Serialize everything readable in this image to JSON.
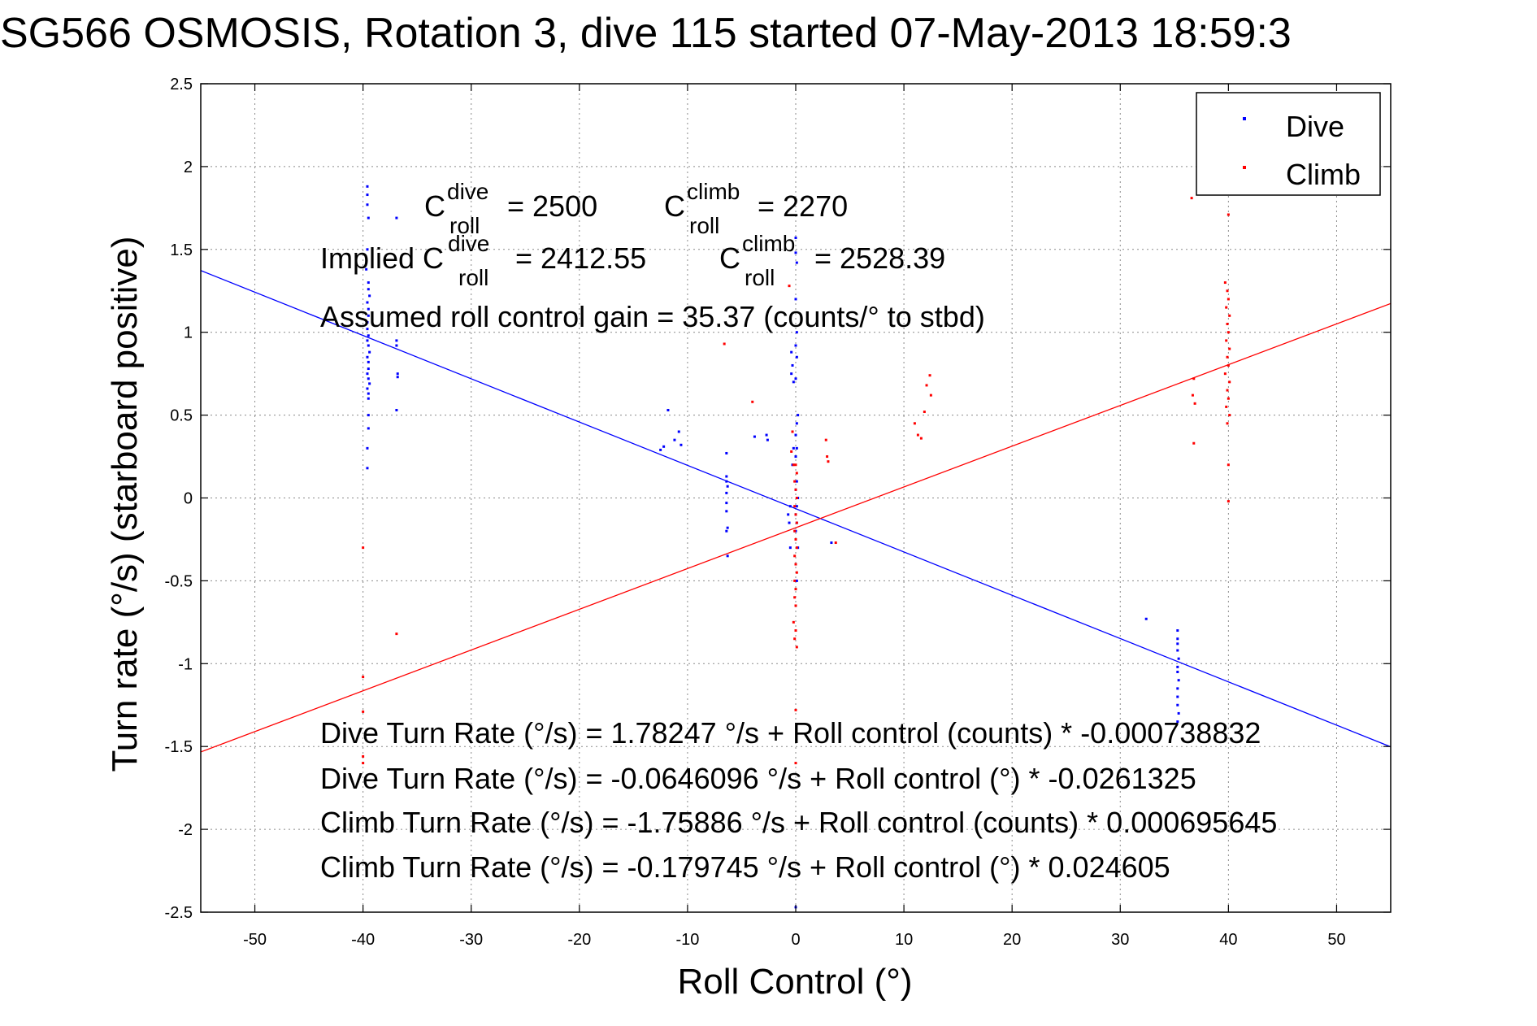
{
  "chart_data": {
    "type": "scatter",
    "title": "SG566 OSMOSIS, Rotation 3, dive 115 started 07-May-2013 18:59:3",
    "xlabel": "Roll Control (°)",
    "ylabel": "Turn rate (°/s)  (starboard positive)",
    "xlim": [
      -55,
      55
    ],
    "ylim": [
      -2.5,
      2.5
    ],
    "xticks": [
      -50,
      -40,
      -30,
      -20,
      -10,
      0,
      10,
      20,
      30,
      40,
      50
    ],
    "yticks": [
      -2.5,
      -2,
      -1.5,
      -1,
      -0.5,
      0,
      0.5,
      1,
      1.5,
      2,
      2.5
    ],
    "grid": true,
    "legend": {
      "position": "top-right",
      "entries": [
        "Dive",
        "Climb"
      ]
    },
    "colors": {
      "dive": "#0000ff",
      "climb": "#ff0000"
    },
    "series": [
      {
        "name": "Dive",
        "color": "#0000ff",
        "points": [
          [
            -39.6,
            1.88
          ],
          [
            -39.6,
            1.83
          ],
          [
            -39.6,
            1.77
          ],
          [
            -39.5,
            1.69
          ],
          [
            -39.6,
            1.5
          ],
          [
            -39.7,
            1.38
          ],
          [
            -39.5,
            1.3
          ],
          [
            -39.5,
            1.26
          ],
          [
            -39.4,
            1.22
          ],
          [
            -39.6,
            1.18
          ],
          [
            -39.5,
            1.14
          ],
          [
            -39.5,
            1.1
          ],
          [
            -39.6,
            1.06
          ],
          [
            -39.6,
            1.02
          ],
          [
            -39.5,
            0.98
          ],
          [
            -39.6,
            0.95
          ],
          [
            -39.5,
            0.92
          ],
          [
            -39.4,
            0.88
          ],
          [
            -39.6,
            0.85
          ],
          [
            -39.5,
            0.82
          ],
          [
            -39.5,
            0.78
          ],
          [
            -39.6,
            0.75
          ],
          [
            -39.5,
            0.72
          ],
          [
            -39.4,
            0.69
          ],
          [
            -39.6,
            0.66
          ],
          [
            -39.5,
            0.63
          ],
          [
            -39.5,
            0.6
          ],
          [
            -39.5,
            0.5
          ],
          [
            -39.5,
            0.42
          ],
          [
            -39.6,
            0.3
          ],
          [
            -39.6,
            0.18
          ],
          [
            -36.9,
            1.69
          ],
          [
            -36.9,
            0.95
          ],
          [
            -36.9,
            0.92
          ],
          [
            -36.8,
            0.75
          ],
          [
            -36.8,
            0.73
          ],
          [
            -36.9,
            0.53
          ],
          [
            -12.5,
            0.29
          ],
          [
            -12.2,
            0.31
          ],
          [
            -11.8,
            0.53
          ],
          [
            -11.2,
            0.35
          ],
          [
            -10.8,
            0.4
          ],
          [
            -10.6,
            0.32
          ],
          [
            -6.4,
            0.27
          ],
          [
            -6.4,
            0.13
          ],
          [
            -6.4,
            0.1
          ],
          [
            -6.3,
            0.07
          ],
          [
            -6.4,
            0.03
          ],
          [
            -6.4,
            -0.03
          ],
          [
            -6.4,
            -0.08
          ],
          [
            -6.3,
            -0.18
          ],
          [
            -6.4,
            -0.2
          ],
          [
            -6.3,
            -0.35
          ],
          [
            -3.8,
            0.37
          ],
          [
            -2.7,
            0.38
          ],
          [
            -2.6,
            0.35
          ],
          [
            -0.4,
            0.88
          ],
          [
            -0.3,
            0.8
          ],
          [
            -0.4,
            0.75
          ],
          [
            -0.2,
            0.7
          ],
          [
            -0.3,
            0.4
          ],
          [
            -0.2,
            0.3
          ],
          [
            -0.3,
            0.2
          ],
          [
            0,
            1.57
          ],
          [
            0,
            1.48
          ],
          [
            0.1,
            1.42
          ],
          [
            0,
            1.2
          ],
          [
            0.1,
            1.0
          ],
          [
            0,
            0.92
          ],
          [
            0.1,
            0.85
          ],
          [
            0,
            0.72
          ],
          [
            0.2,
            0.5
          ],
          [
            0.1,
            0.45
          ],
          [
            0,
            0.38
          ],
          [
            0.1,
            0.3
          ],
          [
            0,
            0.25
          ],
          [
            0.1,
            0.1
          ],
          [
            0,
            0.05
          ],
          [
            0.2,
            0
          ],
          [
            0.1,
            -0.05
          ],
          [
            0,
            -0.1
          ],
          [
            0.1,
            -0.15
          ],
          [
            0,
            -0.2
          ],
          [
            0.2,
            -0.3
          ],
          [
            0,
            -0.4
          ],
          [
            0.1,
            -0.5
          ],
          [
            0,
            -2.47
          ],
          [
            -0.5,
            -0.05
          ],
          [
            -0.6,
            -0.15
          ],
          [
            -0.5,
            -0.3
          ],
          [
            -0.7,
            -0.1
          ],
          [
            3.3,
            -0.27
          ],
          [
            32.4,
            -0.73
          ],
          [
            35.3,
            -0.8
          ],
          [
            35.3,
            -0.85
          ],
          [
            35.3,
            -0.88
          ],
          [
            35.3,
            -0.92
          ],
          [
            35.4,
            -0.97
          ],
          [
            35.3,
            -1.02
          ],
          [
            35.3,
            -1.05
          ],
          [
            35.4,
            -1.1
          ],
          [
            35.3,
            -1.15
          ],
          [
            35.3,
            -1.2
          ],
          [
            35.3,
            -1.25
          ],
          [
            35.4,
            -1.3
          ],
          [
            35.3,
            -1.35
          ]
        ]
      },
      {
        "name": "Climb",
        "color": "#ff0000",
        "points": [
          [
            -40.0,
            -0.3
          ],
          [
            -40.0,
            -1.08
          ],
          [
            -40.0,
            -1.29
          ],
          [
            -40.0,
            -1.56
          ],
          [
            -40.0,
            -1.6
          ],
          [
            -36.9,
            -0.82
          ],
          [
            -6.6,
            0.93
          ],
          [
            -4.0,
            0.58
          ],
          [
            -0.6,
            1.28
          ],
          [
            -0.3,
            0.4
          ],
          [
            -0.4,
            0.28
          ],
          [
            -0.2,
            0.2
          ],
          [
            0,
            0.2
          ],
          [
            0.1,
            0.15
          ],
          [
            -0.1,
            0.1
          ],
          [
            0,
            0.05
          ],
          [
            0.1,
            0
          ],
          [
            -0.1,
            -0.05
          ],
          [
            0,
            -0.1
          ],
          [
            0.1,
            -0.15
          ],
          [
            -0.1,
            -0.2
          ],
          [
            0,
            -0.25
          ],
          [
            0.1,
            -0.3
          ],
          [
            -0.1,
            -0.35
          ],
          [
            0,
            -0.4
          ],
          [
            0.1,
            -0.45
          ],
          [
            -0.1,
            -0.5
          ],
          [
            0,
            -0.55
          ],
          [
            -0.1,
            -0.6
          ],
          [
            0,
            -0.65
          ],
          [
            -0.2,
            -0.75
          ],
          [
            0,
            -0.8
          ],
          [
            -0.1,
            -0.85
          ],
          [
            0.1,
            -0.9
          ],
          [
            0,
            -1.28
          ],
          [
            0,
            -1.6
          ],
          [
            2.8,
            0.35
          ],
          [
            2.9,
            0.25
          ],
          [
            3.0,
            0.22
          ],
          [
            3.7,
            -0.27
          ],
          [
            11.0,
            0.45
          ],
          [
            11.3,
            0.38
          ],
          [
            11.6,
            0.36
          ],
          [
            11.9,
            0.52
          ],
          [
            12.1,
            0.68
          ],
          [
            12.5,
            0.62
          ],
          [
            12.4,
            0.74
          ],
          [
            36.6,
            1.81
          ],
          [
            36.8,
            0.72
          ],
          [
            36.7,
            0.62
          ],
          [
            36.9,
            0.57
          ],
          [
            36.8,
            0.33
          ],
          [
            39.7,
            1.3
          ],
          [
            39.9,
            1.25
          ],
          [
            40.0,
            1.2
          ],
          [
            39.8,
            1.15
          ],
          [
            40.1,
            1.1
          ],
          [
            39.9,
            1.05
          ],
          [
            40.0,
            1.0
          ],
          [
            39.8,
            0.95
          ],
          [
            40.1,
            0.9
          ],
          [
            39.9,
            0.85
          ],
          [
            40.0,
            0.8
          ],
          [
            39.7,
            0.75
          ],
          [
            40.1,
            0.7
          ],
          [
            39.9,
            0.65
          ],
          [
            40.0,
            0.6
          ],
          [
            39.8,
            0.55
          ],
          [
            40.1,
            0.5
          ],
          [
            39.9,
            0.45
          ],
          [
            40.0,
            0.2
          ],
          [
            40.0,
            -0.02
          ],
          [
            40.0,
            1.71
          ]
        ]
      }
    ],
    "fit_lines": [
      {
        "name": "Dive fit",
        "color": "#0000ff",
        "slope": -0.0261325,
        "intercept": -0.0646096
      },
      {
        "name": "Climb fit",
        "color": "#ff0000",
        "slope": 0.024605,
        "intercept": -0.179745
      }
    ],
    "annotations": {
      "c_dive": {
        "base": "C",
        "sup": "dive",
        "sub": "roll",
        "value": "= 2500"
      },
      "c_climb": {
        "base": "C",
        "sup": "climb",
        "sub": "roll",
        "value": "= 2270"
      },
      "implied_prefix": "Implied C",
      "implied_dive": {
        "sup": "dive",
        "sub": "roll",
        "value": "= 2412.55"
      },
      "implied_climb": {
        "base": "C",
        "sup": "climb",
        "sub": "roll",
        "value": "= 2528.39"
      },
      "gain": "Assumed roll control gain = 35.37 (counts/° to stbd)",
      "eq1": "Dive Turn Rate (°/s) = 1.78247 °/s + Roll control (counts) * -0.000738832",
      "eq2": "Dive Turn Rate (°/s) = -0.0646096 °/s + Roll control (°) * -0.0261325",
      "eq3": "Climb Turn Rate (°/s) = -1.75886 °/s + Roll control (counts) * 0.000695645",
      "eq4": "Climb Turn Rate (°/s) = -0.179745 °/s + Roll control (°) * 0.024605"
    }
  }
}
